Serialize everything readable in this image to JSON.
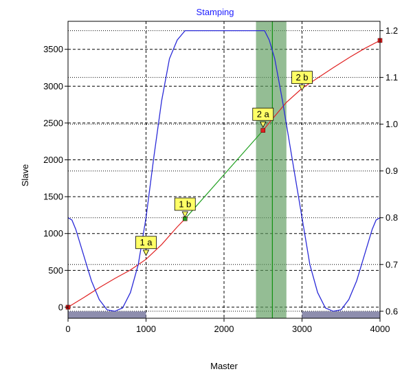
{
  "chart_data": {
    "type": "line",
    "title": "Stamping",
    "xlabel": "Master",
    "ylabel": "Slave",
    "xlim": [
      0,
      4000
    ],
    "ylim": [
      -150,
      3880
    ],
    "y2lim": [
      0.585,
      1.22
    ],
    "x_ticks": [
      "0",
      "1000",
      "2000",
      "3000",
      "4000"
    ],
    "y_ticks": [
      "0",
      "500",
      "1000",
      "1500",
      "2000",
      "2500",
      "3000",
      "3500"
    ],
    "y2_ticks": [
      "0.6",
      "0.7",
      "0.8",
      "0.9",
      "1.0",
      "1.1",
      "1.2"
    ],
    "grid": true,
    "colors": {
      "title": "#1a1aff",
      "position_low": "#e02020",
      "position_linear": "#20a020",
      "velocity": "#2a2ad8",
      "highlight_band": "#5a9a5a",
      "cursor": "#109010",
      "bar": "#8e8eae",
      "annotation_fill": "#ffff66"
    },
    "series": [
      {
        "axis": "left",
        "segments": [
          {
            "color": "position_low",
            "points": [
              [
                0,
                0
              ],
              [
                200,
                130
              ],
              [
                400,
                265
              ],
              [
                600,
                390
              ],
              [
                800,
                505
              ],
              [
                1000,
                650
              ],
              [
                1200,
                850
              ],
              [
                1400,
                1090
              ],
              [
                1500,
                1200
              ]
            ]
          },
          {
            "color": "position_linear",
            "points": [
              [
                1500,
                1200
              ],
              [
                2500,
                2400
              ]
            ]
          },
          {
            "color": "position_low",
            "points": [
              [
                2500,
                2400
              ],
              [
                2600,
                2530
              ],
              [
                2800,
                2780
              ],
              [
                3000,
                2970
              ],
              [
                3200,
                3110
              ],
              [
                3400,
                3250
              ],
              [
                3600,
                3385
              ],
              [
                3800,
                3510
              ],
              [
                4000,
                3620
              ]
            ]
          }
        ]
      },
      {
        "axis": "right",
        "color": "velocity",
        "points": [
          [
            0,
            0.8
          ],
          [
            50,
            0.795
          ],
          [
            100,
            0.775
          ],
          [
            200,
            0.72
          ],
          [
            300,
            0.665
          ],
          [
            400,
            0.625
          ],
          [
            500,
            0.603
          ],
          [
            600,
            0.6
          ],
          [
            700,
            0.607
          ],
          [
            800,
            0.64
          ],
          [
            900,
            0.7
          ],
          [
            1000,
            0.8
          ],
          [
            1100,
            0.93
          ],
          [
            1200,
            1.05
          ],
          [
            1300,
            1.14
          ],
          [
            1400,
            1.18
          ],
          [
            1500,
            1.2
          ],
          [
            1550,
            1.2
          ],
          [
            2000,
            1.2
          ],
          [
            2400,
            1.2
          ],
          [
            2520,
            1.2
          ],
          [
            2580,
            1.18
          ],
          [
            2650,
            1.14
          ],
          [
            2750,
            1.05
          ],
          [
            2900,
            0.9
          ],
          [
            3000,
            0.8
          ],
          [
            3100,
            0.7
          ],
          [
            3200,
            0.64
          ],
          [
            3300,
            0.607
          ],
          [
            3400,
            0.6
          ],
          [
            3500,
            0.603
          ],
          [
            3600,
            0.625
          ],
          [
            3700,
            0.665
          ],
          [
            3800,
            0.72
          ],
          [
            3900,
            0.775
          ],
          [
            3950,
            0.795
          ],
          [
            4000,
            0.8
          ]
        ]
      }
    ],
    "markers": [
      {
        "x": 0,
        "y": 0,
        "color": "position_low"
      },
      {
        "x": 4000,
        "y": 3620,
        "color": "position_low"
      },
      {
        "x": 1500,
        "y": 1200,
        "color": "position_linear"
      },
      {
        "x": 2500,
        "y": 2400,
        "color": "position_low"
      }
    ],
    "highlight_band": {
      "x0": 2410,
      "x1": 2800
    },
    "cursor_x": 2620,
    "bars": [
      {
        "x0": 0,
        "x1": 1000
      },
      {
        "x0": 3000,
        "x1": 4000
      }
    ],
    "annotations": [
      {
        "label": "1 a",
        "x": 1000,
        "y": 720
      },
      {
        "label": "1 b",
        "x": 1500,
        "y": 1240
      },
      {
        "label": "2 a",
        "x": 2500,
        "y": 2460
      },
      {
        "label": "2 b",
        "x": 3000,
        "y": 2960
      }
    ]
  }
}
